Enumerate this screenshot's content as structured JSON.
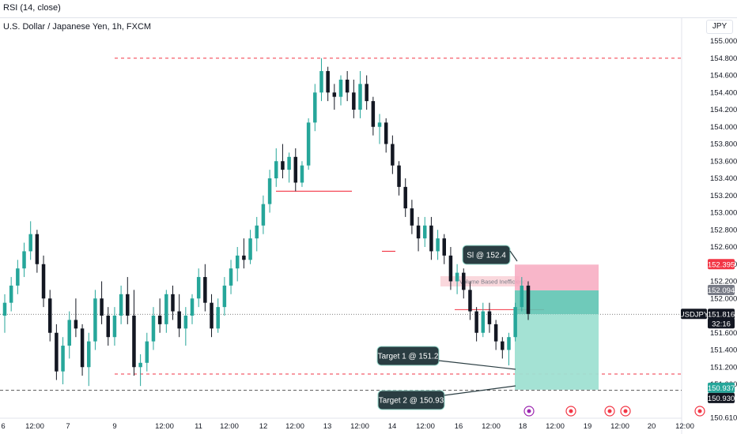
{
  "header": {
    "indicator_label": "RSI (14, close)",
    "symbol_title": "U.S. Dollar / Japanese Yen, 1h, FXCM",
    "currency": "JPY"
  },
  "chart_data": {
    "type": "candlestick",
    "symbol": "USDJPY",
    "ylim": [
      150.55,
      155.2
    ],
    "y_ticks": [
      "155.000",
      "154.800",
      "154.600",
      "154.400",
      "154.200",
      "154.000",
      "153.800",
      "153.600",
      "153.400",
      "153.200",
      "153.000",
      "152.800",
      "152.600",
      "152.400",
      "152.200",
      "152.000",
      "151.600",
      "151.400",
      "151.200",
      "151.000",
      "150.610"
    ],
    "x_ticks": [
      "6",
      "12:00",
      "7",
      "9",
      "12:00",
      "11",
      "12:00",
      "12",
      "12:00",
      "13",
      "12:00",
      "14",
      "12:00",
      "16",
      "12:00",
      "18",
      "12:00",
      "19",
      "12:00",
      "20",
      "12:00"
    ],
    "price_tags": [
      {
        "label": "152.395",
        "color": "#f23645"
      },
      {
        "label": "152.094",
        "color": "#787b86"
      },
      {
        "label": "USDJPY",
        "color": "#131722"
      },
      {
        "label": "151.816",
        "color": "#131722"
      },
      {
        "label": "32:16",
        "color": "#131722"
      },
      {
        "label": "150.937",
        "color": "#26a69a"
      },
      {
        "label": "150.930",
        "color": "#131722"
      }
    ],
    "annotations": {
      "stop_loss": "Sl @ 152.4",
      "target1": "Target 1 @ 151.2",
      "target2": "Target 2 @ 150.93",
      "zone_label": "Volume Based Inefficiency"
    },
    "candles": [
      [
        151.8,
        152.05,
        151.6,
        151.95
      ],
      [
        151.95,
        152.25,
        151.85,
        152.15
      ],
      [
        152.15,
        152.45,
        152.05,
        152.35
      ],
      [
        152.35,
        152.65,
        152.25,
        152.55
      ],
      [
        152.55,
        152.9,
        152.45,
        152.75
      ],
      [
        152.75,
        152.8,
        152.3,
        152.4
      ],
      [
        152.4,
        152.5,
        151.9,
        152.0
      ],
      [
        152.0,
        152.1,
        151.5,
        151.6
      ],
      [
        151.6,
        151.7,
        151.05,
        151.15
      ],
      [
        151.15,
        151.55,
        151.0,
        151.45
      ],
      [
        151.45,
        151.85,
        151.3,
        151.75
      ],
      [
        151.75,
        152.0,
        151.55,
        151.65
      ],
      [
        151.65,
        151.7,
        151.1,
        151.2
      ],
      [
        151.2,
        151.6,
        150.98,
        151.5
      ],
      [
        151.5,
        152.1,
        151.4,
        152.0
      ],
      [
        152.0,
        152.2,
        151.7,
        151.8
      ],
      [
        151.8,
        151.9,
        151.45,
        151.55
      ],
      [
        151.55,
        151.9,
        151.45,
        151.8
      ],
      [
        151.8,
        152.15,
        151.7,
        152.05
      ],
      [
        152.05,
        152.25,
        151.7,
        151.8
      ],
      [
        151.8,
        152.1,
        151.1,
        151.2
      ],
      [
        151.2,
        151.35,
        150.98,
        151.25
      ],
      [
        151.25,
        151.6,
        151.15,
        151.5
      ],
      [
        151.5,
        151.9,
        151.4,
        151.8
      ],
      [
        151.8,
        152.0,
        151.6,
        151.7
      ],
      [
        151.7,
        152.1,
        151.6,
        152.05
      ],
      [
        152.05,
        152.15,
        151.75,
        151.85
      ],
      [
        151.85,
        152.05,
        151.55,
        151.65
      ],
      [
        151.65,
        151.9,
        151.45,
        151.8
      ],
      [
        151.8,
        152.05,
        151.7,
        152.0
      ],
      [
        152.0,
        152.35,
        151.9,
        152.25
      ],
      [
        152.25,
        152.4,
        151.85,
        151.95
      ],
      [
        151.95,
        152.05,
        151.55,
        151.65
      ],
      [
        151.65,
        152.0,
        151.6,
        151.9
      ],
      [
        151.9,
        152.25,
        151.8,
        152.15
      ],
      [
        152.15,
        152.45,
        152.05,
        152.35
      ],
      [
        152.35,
        152.6,
        152.2,
        152.5
      ],
      [
        152.5,
        152.7,
        152.35,
        152.45
      ],
      [
        152.45,
        152.8,
        152.4,
        152.7
      ],
      [
        152.7,
        152.95,
        152.55,
        152.85
      ],
      [
        152.85,
        153.2,
        152.75,
        153.1
      ],
      [
        153.1,
        153.5,
        153.0,
        153.4
      ],
      [
        153.4,
        153.75,
        153.3,
        153.6
      ],
      [
        153.6,
        153.8,
        153.4,
        153.5
      ],
      [
        153.5,
        153.7,
        153.35,
        153.65
      ],
      [
        153.65,
        153.75,
        153.25,
        153.35
      ],
      [
        153.35,
        153.6,
        153.3,
        153.55
      ],
      [
        153.55,
        154.1,
        153.5,
        154.05
      ],
      [
        154.05,
        154.5,
        153.95,
        154.4
      ],
      [
        154.4,
        154.8,
        154.3,
        154.65
      ],
      [
        154.65,
        154.7,
        154.3,
        154.4
      ],
      [
        154.4,
        154.5,
        154.2,
        154.35
      ],
      [
        154.35,
        154.6,
        154.25,
        154.55
      ],
      [
        154.55,
        154.65,
        154.3,
        154.4
      ],
      [
        154.4,
        154.55,
        154.1,
        154.2
      ],
      [
        154.2,
        154.65,
        154.1,
        154.5
      ],
      [
        154.5,
        154.6,
        154.2,
        154.3
      ],
      [
        154.3,
        154.35,
        153.9,
        154.0
      ],
      [
        154.0,
        154.15,
        153.8,
        154.05
      ],
      [
        154.05,
        154.1,
        153.7,
        153.8
      ],
      [
        153.8,
        153.9,
        153.45,
        153.55
      ],
      [
        153.55,
        153.6,
        153.2,
        153.3
      ],
      [
        153.3,
        153.4,
        152.95,
        153.05
      ],
      [
        153.05,
        153.15,
        152.75,
        152.85
      ],
      [
        152.85,
        152.95,
        152.55,
        152.7
      ],
      [
        152.7,
        152.95,
        152.6,
        152.85
      ],
      [
        152.85,
        152.95,
        152.45,
        152.55
      ],
      [
        152.55,
        152.8,
        152.45,
        152.7
      ],
      [
        152.7,
        152.75,
        152.4,
        152.5
      ],
      [
        152.5,
        152.6,
        152.1,
        152.2
      ],
      [
        152.2,
        152.4,
        152.05,
        152.3
      ],
      [
        152.3,
        152.35,
        152.0,
        152.1
      ],
      [
        152.1,
        152.2,
        151.75,
        151.85
      ],
      [
        151.85,
        151.9,
        151.5,
        151.6
      ],
      [
        151.6,
        151.95,
        151.55,
        151.85
      ],
      [
        151.85,
        151.95,
        151.6,
        151.7
      ],
      [
        151.7,
        151.75,
        151.4,
        151.5
      ],
      [
        151.5,
        151.55,
        151.3,
        151.4
      ],
      [
        151.4,
        151.6,
        151.22,
        151.55
      ],
      [
        151.55,
        151.95,
        151.5,
        151.9
      ],
      [
        151.9,
        152.25,
        151.85,
        152.15
      ],
      [
        152.15,
        152.2,
        151.75,
        151.82
      ]
    ]
  }
}
